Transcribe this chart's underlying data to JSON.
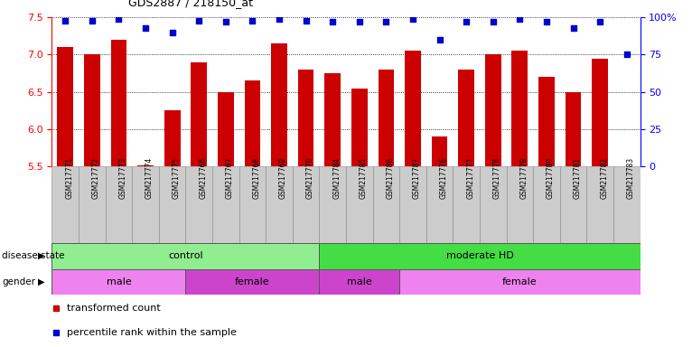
{
  "title": "GDS2887 / 218150_at",
  "samples": [
    "GSM217771",
    "GSM217772",
    "GSM217773",
    "GSM217774",
    "GSM217775",
    "GSM217766",
    "GSM217767",
    "GSM217768",
    "GSM217769",
    "GSM217770",
    "GSM217784",
    "GSM217785",
    "GSM217786",
    "GSM217787",
    "GSM217776",
    "GSM217777",
    "GSM217778",
    "GSM217779",
    "GSM217780",
    "GSM217781",
    "GSM217782",
    "GSM217783"
  ],
  "bar_values": [
    7.1,
    7.0,
    7.2,
    5.52,
    6.25,
    6.9,
    6.5,
    6.65,
    7.15,
    6.8,
    6.75,
    6.55,
    6.8,
    7.05,
    5.9,
    6.8,
    7.0,
    7.05,
    6.7,
    6.5,
    6.95,
    5.5
  ],
  "percentile_values": [
    98,
    98,
    99,
    93,
    90,
    98,
    97,
    98,
    99,
    98,
    97,
    97,
    97,
    99,
    85,
    97,
    97,
    99,
    97,
    93,
    97,
    75
  ],
  "bar_color": "#cc0000",
  "dot_color": "#0000cc",
  "ylim_left": [
    5.5,
    7.5
  ],
  "ylim_right": [
    0,
    100
  ],
  "yticks_left": [
    5.5,
    6.0,
    6.5,
    7.0,
    7.5
  ],
  "yticks_right": [
    0,
    25,
    50,
    75,
    100
  ],
  "disease_state_groups": [
    {
      "label": "control",
      "start": 0,
      "end": 10,
      "color": "#90ee90"
    },
    {
      "label": "moderate HD",
      "start": 10,
      "end": 22,
      "color": "#44dd44"
    }
  ],
  "gender_groups": [
    {
      "label": "male",
      "start": 0,
      "end": 5,
      "color": "#ee82ee"
    },
    {
      "label": "female",
      "start": 5,
      "end": 10,
      "color": "#cc44cc"
    },
    {
      "label": "male",
      "start": 10,
      "end": 13,
      "color": "#cc44cc"
    },
    {
      "label": "female",
      "start": 13,
      "end": 22,
      "color": "#ee82ee"
    }
  ],
  "legend_items": [
    {
      "label": "transformed count",
      "color": "#cc0000"
    },
    {
      "label": "percentile rank within the sample",
      "color": "#0000cc"
    }
  ],
  "background_color": "#ffffff",
  "tick_label_bg": "#cccccc",
  "band_border_color": "#555555"
}
